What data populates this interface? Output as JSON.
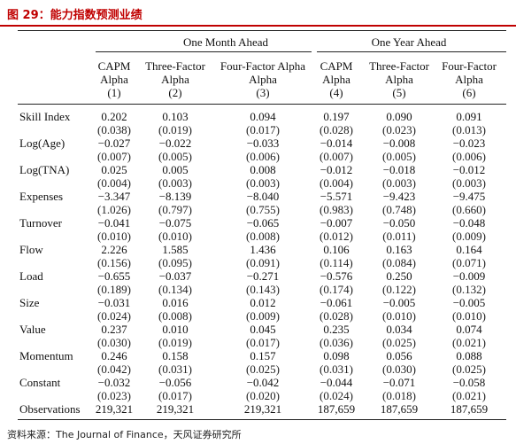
{
  "title": "图 29：能力指数预测业绩",
  "group_headers": [
    "One Month Ahead",
    "One Year Ahead"
  ],
  "columns": [
    {
      "line1": "CAPM",
      "line2": "Alpha",
      "num": "(1)"
    },
    {
      "line1": "Three-Factor",
      "line2": "Alpha",
      "num": "(2)"
    },
    {
      "line1": "Four-Factor Alpha",
      "line2": "Alpha",
      "num": "(3)"
    },
    {
      "line1": "CAPM",
      "line2": "Alpha",
      "num": "(4)"
    },
    {
      "line1": "Three-Factor",
      "line2": "Alpha",
      "num": "(5)"
    },
    {
      "line1": "Four-Factor",
      "line2": "Alpha",
      "num": "(6)"
    }
  ],
  "rows": [
    {
      "label": "Skill Index",
      "coef": [
        "0.202",
        "0.103",
        "0.094",
        "0.197",
        "0.090",
        "0.091"
      ],
      "se": [
        "(0.038)",
        "(0.019)",
        "(0.017)",
        "(0.028)",
        "(0.023)",
        "(0.013)"
      ]
    },
    {
      "label": "Log(Age)",
      "coef": [
        "−0.027",
        "−0.022",
        "−0.033",
        "−0.014",
        "−0.008",
        "−0.023"
      ],
      "se": [
        "(0.007)",
        "(0.005)",
        "(0.006)",
        "(0.007)",
        "(0.005)",
        "(0.006)"
      ]
    },
    {
      "label": "Log(TNA)",
      "coef": [
        "0.025",
        "0.005",
        "0.008",
        "−0.012",
        "−0.018",
        "−0.012"
      ],
      "se": [
        "(0.004)",
        "(0.003)",
        "(0.003)",
        "(0.004)",
        "(0.003)",
        "(0.003)"
      ]
    },
    {
      "label": "Expenses",
      "coef": [
        "−3.347",
        "−8.139",
        "−8.040",
        "−5.571",
        "−9.423",
        "−9.475"
      ],
      "se": [
        "(1.026)",
        "(0.797)",
        "(0.755)",
        "(0.983)",
        "(0.748)",
        "(0.660)"
      ]
    },
    {
      "label": "Turnover",
      "coef": [
        "−0.041",
        "−0.075",
        "−0.065",
        "−0.007",
        "−0.050",
        "−0.048"
      ],
      "se": [
        "(0.010)",
        "(0.010)",
        "(0.008)",
        "(0.012)",
        "(0.011)",
        "(0.009)"
      ]
    },
    {
      "label": "Flow",
      "coef": [
        "2.226",
        "1.585",
        "1.436",
        "0.106",
        "0.163",
        "0.164"
      ],
      "se": [
        "(0.156)",
        "(0.095)",
        "(0.091)",
        "(0.114)",
        "(0.084)",
        "(0.071)"
      ]
    },
    {
      "label": "Load",
      "coef": [
        "−0.655",
        "−0.037",
        "−0.271",
        "−0.576",
        "0.250",
        "−0.009"
      ],
      "se": [
        "(0.189)",
        "(0.134)",
        "(0.143)",
        "(0.174)",
        "(0.122)",
        "(0.132)"
      ]
    },
    {
      "label": "Size",
      "coef": [
        "−0.031",
        "0.016",
        "0.012",
        "−0.061",
        "−0.005",
        "−0.005"
      ],
      "se": [
        "(0.024)",
        "(0.008)",
        "(0.009)",
        "(0.028)",
        "(0.010)",
        "(0.010)"
      ]
    },
    {
      "label": "Value",
      "coef": [
        "0.237",
        "0.010",
        "0.045",
        "0.235",
        "0.034",
        "0.074"
      ],
      "se": [
        "(0.030)",
        "(0.019)",
        "(0.017)",
        "(0.036)",
        "(0.025)",
        "(0.021)"
      ]
    },
    {
      "label": "Momentum",
      "coef": [
        "0.246",
        "0.158",
        "0.157",
        "0.098",
        "0.056",
        "0.088"
      ],
      "se": [
        "(0.042)",
        "(0.031)",
        "(0.025)",
        "(0.031)",
        "(0.030)",
        "(0.025)"
      ]
    },
    {
      "label": "Constant",
      "coef": [
        "−0.032",
        "−0.056",
        "−0.042",
        "−0.044",
        "−0.071",
        "−0.058"
      ],
      "se": [
        "(0.023)",
        "(0.017)",
        "(0.020)",
        "(0.024)",
        "(0.018)",
        "(0.021)"
      ]
    }
  ],
  "observations": {
    "label": "Observations",
    "values": [
      "219,321",
      "219,321",
      "219,321",
      "187,659",
      "187,659",
      "187,659"
    ]
  },
  "source": "资料来源：The Journal of Finance，天风证券研究所"
}
